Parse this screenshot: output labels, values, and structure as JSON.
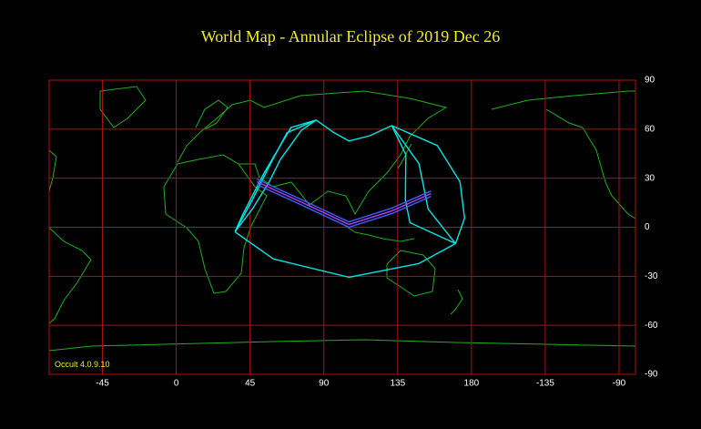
{
  "chart_data": {
    "type": "map",
    "title": "World Map  -  Annular  Eclipse  of  2019 Dec 26",
    "footer": "Occult 4.0.9.10",
    "xlim": [
      -77.5,
      280
    ],
    "ylim": [
      -90,
      90
    ],
    "xticks": [
      -45,
      0,
      45,
      90,
      135,
      180,
      {
        "value": 225,
        "label": "-135"
      },
      {
        "value": 270,
        "label": "-90"
      }
    ],
    "yticks": [
      90,
      60,
      30,
      0,
      -30,
      -60,
      -90
    ],
    "grid": true,
    "grid_color": "#b01010",
    "series": [
      {
        "color": "#00e5e5",
        "x": [
          85.3,
          70,
          53.6,
          40.8,
          35.8
        ],
        "values": [
          65.6,
          61.1,
          33.3,
          8.3,
          -2.8
        ]
      },
      {
        "color": "#00e5e5",
        "x": [
          85.3,
          67.5,
          57.5,
          45.8,
          35.8
        ],
        "values": [
          65.6,
          57.8,
          38.9,
          15.6,
          -2.8
        ]
      },
      {
        "color": "#00e5e5",
        "x": [
          85.3,
          76.4,
          63.6,
          56.7,
          46.4,
          35.8
        ],
        "values": [
          65.6,
          59.4,
          41.7,
          27.8,
          11.1,
          -2.8
        ]
      },
      {
        "color": "#00e5e5",
        "x": [
          35.8,
          59.2,
          105.3,
          148,
          170.3
        ],
        "values": [
          -2.8,
          -19.4,
          -30.6,
          -22.2,
          -10
        ]
      },
      {
        "color": "#00e5e5",
        "x": [
          170.3,
          175.8,
          173,
          159.2,
          131.4
        ],
        "values": [
          -10,
          5.6,
          27.8,
          50,
          62.2
        ]
      },
      {
        "color": "#00e5e5",
        "x": [
          85.3,
          96,
          105.3,
          118,
          131.4
        ],
        "values": [
          65.6,
          58,
          52.8,
          56,
          62.2
        ]
      },
      {
        "color": "#00e5e5",
        "x": [
          131.4,
          140,
          139.7,
          142.5,
          170.3
        ],
        "values": [
          62.2,
          44.4,
          16.7,
          2.8,
          -10
        ]
      },
      {
        "color": "#00e5e5",
        "x": [
          131.4,
          148,
          153.6,
          170.3
        ],
        "values": [
          62.2,
          38.9,
          11.1,
          -10
        ]
      },
      {
        "color": "#4060ff",
        "x": [
          49.2,
          75.8,
          105.3,
          131.4,
          155.3
        ],
        "values": [
          29.4,
          17.2,
          3.3,
          11.7,
          22.2
        ]
      },
      {
        "color": "#b040ff",
        "x": [
          49.2,
          75.8,
          105.3,
          131.4,
          155.3
        ],
        "values": [
          27.8,
          15.6,
          1.7,
          10,
          20.6
        ]
      },
      {
        "color": "#4060ff",
        "x": [
          49.2,
          75.8,
          105.3,
          131.4,
          155.3
        ],
        "values": [
          26.1,
          13.9,
          0,
          8.3,
          18.9
        ]
      }
    ]
  }
}
